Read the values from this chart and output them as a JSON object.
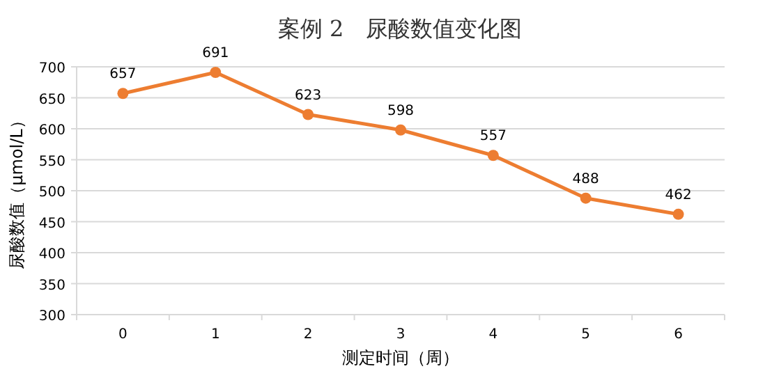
{
  "chart_data": {
    "type": "line",
    "title": "案例 2　尿酸数值变化图",
    "xlabel": "测定时间（周）",
    "ylabel": "尿酸数值（μmol/L）",
    "categories": [
      "0",
      "1",
      "2",
      "3",
      "4",
      "5",
      "6"
    ],
    "series": [
      {
        "color": "#ed7d31",
        "values": [
          657,
          691,
          623,
          598,
          557,
          488,
          462
        ]
      }
    ],
    "ylim": [
      300,
      700
    ],
    "yticks": [
      300,
      350,
      400,
      450,
      500,
      550,
      600,
      650,
      700
    ],
    "grid": "y",
    "marker": "circle",
    "data_labels": true
  }
}
